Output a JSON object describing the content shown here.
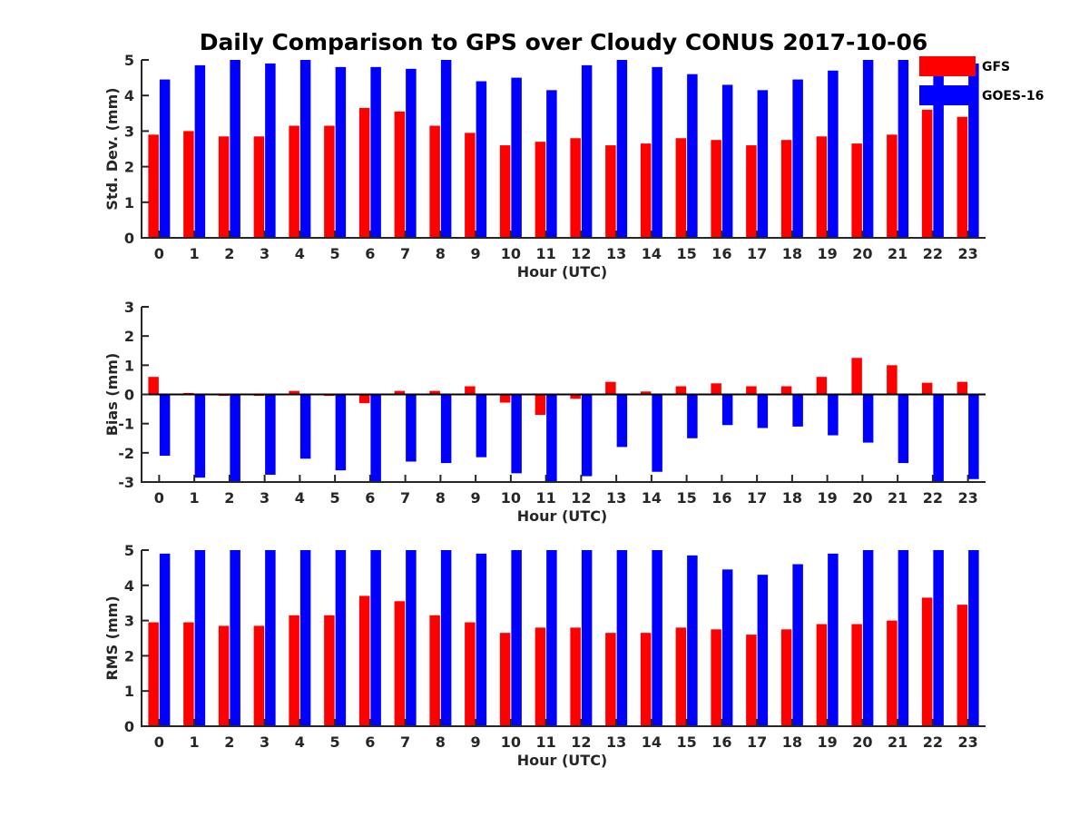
{
  "title": "Daily Comparison to GPS over Cloudy CONUS 2017-10-06",
  "colors": {
    "GFS": "#ff0000",
    "GOES-16": "#0000ff"
  },
  "legend": {
    "placement": "top-right",
    "entries": [
      "GFS",
      "GOES-16"
    ]
  },
  "chart_data": [
    {
      "type": "bar",
      "ylabel": "Std. Dev. (mm)",
      "xlabel": "Hour (UTC)",
      "categories": [
        "0",
        "1",
        "2",
        "3",
        "4",
        "5",
        "6",
        "7",
        "8",
        "9",
        "10",
        "11",
        "12",
        "13",
        "14",
        "15",
        "16",
        "17",
        "18",
        "19",
        "20",
        "21",
        "22",
        "23"
      ],
      "ylim": [
        0,
        5
      ],
      "yticks": [
        "0",
        "1",
        "2",
        "3",
        "4",
        "5"
      ],
      "series": [
        {
          "name": "GFS",
          "values": [
            2.9,
            3.0,
            2.85,
            2.85,
            3.15,
            3.15,
            3.65,
            3.55,
            3.15,
            2.95,
            2.6,
            2.7,
            2.8,
            2.6,
            2.65,
            2.8,
            2.75,
            2.6,
            2.75,
            2.85,
            2.65,
            2.9,
            3.6,
            3.4
          ]
        },
        {
          "name": "GOES-16",
          "values": [
            4.45,
            4.85,
            5.0,
            4.9,
            5.0,
            4.8,
            4.8,
            4.75,
            5.0,
            4.4,
            4.5,
            4.15,
            4.85,
            5.0,
            4.8,
            4.6,
            4.3,
            4.15,
            4.45,
            4.7,
            5.0,
            5.0,
            5.0,
            4.9
          ]
        }
      ]
    },
    {
      "type": "bar",
      "ylabel": "Bias (mm)",
      "xlabel": "Hour (UTC)",
      "categories": [
        "0",
        "1",
        "2",
        "3",
        "4",
        "5",
        "6",
        "7",
        "8",
        "9",
        "10",
        "11",
        "12",
        "13",
        "14",
        "15",
        "16",
        "17",
        "18",
        "19",
        "20",
        "21",
        "22",
        "23"
      ],
      "ylim": [
        -3,
        3
      ],
      "yticks": [
        "-3",
        "-2",
        "-1",
        "0",
        "1",
        "2",
        "3"
      ],
      "series": [
        {
          "name": "GFS",
          "values": [
            0.6,
            0.05,
            -0.05,
            -0.05,
            0.12,
            -0.05,
            -0.3,
            0.12,
            0.12,
            0.28,
            -0.28,
            -0.7,
            -0.15,
            0.43,
            0.1,
            0.28,
            0.38,
            0.28,
            0.28,
            0.6,
            1.25,
            1.0,
            0.4,
            0.43
          ]
        },
        {
          "name": "GOES-16",
          "values": [
            -2.1,
            -2.85,
            -3.0,
            -2.75,
            -2.2,
            -2.6,
            -3.0,
            -2.3,
            -2.35,
            -2.15,
            -2.7,
            -3.0,
            -2.8,
            -1.8,
            -2.65,
            -1.5,
            -1.05,
            -1.15,
            -1.1,
            -1.4,
            -1.65,
            -2.35,
            -3.0,
            -2.9
          ]
        }
      ]
    },
    {
      "type": "bar",
      "ylabel": "RMS (mm)",
      "xlabel": "Hour (UTC)",
      "categories": [
        "0",
        "1",
        "2",
        "3",
        "4",
        "5",
        "6",
        "7",
        "8",
        "9",
        "10",
        "11",
        "12",
        "13",
        "14",
        "15",
        "16",
        "17",
        "18",
        "19",
        "20",
        "21",
        "22",
        "23"
      ],
      "ylim": [
        0,
        5
      ],
      "yticks": [
        "0",
        "1",
        "2",
        "3",
        "4",
        "5"
      ],
      "series": [
        {
          "name": "GFS",
          "values": [
            2.95,
            2.95,
            2.85,
            2.85,
            3.15,
            3.15,
            3.7,
            3.55,
            3.15,
            2.95,
            2.65,
            2.8,
            2.8,
            2.65,
            2.65,
            2.8,
            2.75,
            2.6,
            2.75,
            2.9,
            2.9,
            3.0,
            3.65,
            3.45
          ]
        },
        {
          "name": "GOES-16",
          "values": [
            4.9,
            5.0,
            5.0,
            5.0,
            5.0,
            5.0,
            5.0,
            5.0,
            5.0,
            4.9,
            5.0,
            5.0,
            5.0,
            5.0,
            5.0,
            4.85,
            4.45,
            4.3,
            4.6,
            4.9,
            5.0,
            5.0,
            5.0,
            5.0
          ]
        }
      ]
    }
  ]
}
